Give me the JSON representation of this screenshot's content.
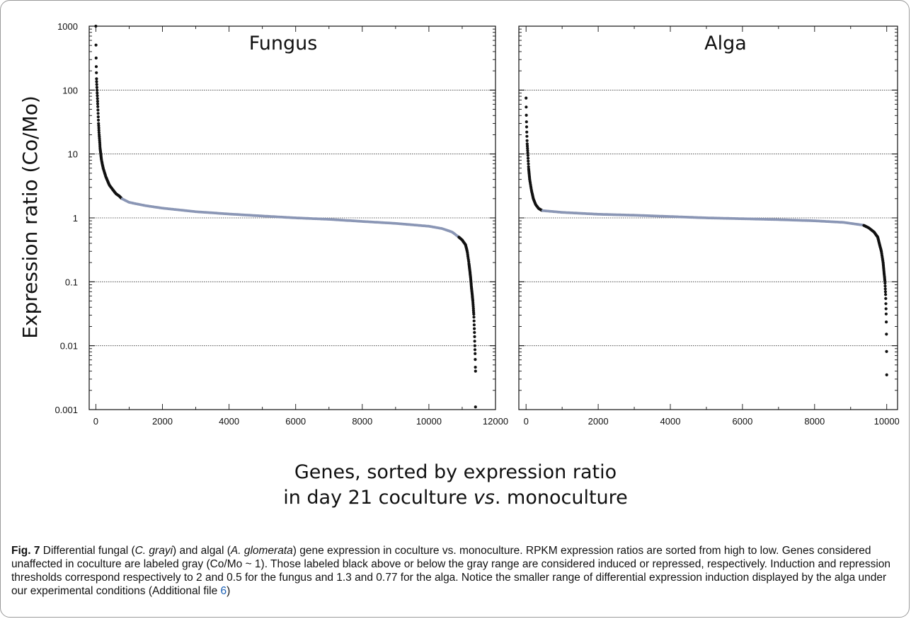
{
  "chart_data": [
    {
      "type": "scatter",
      "title": "Fungus",
      "ylabel": "Expression ratio (Co/Mo)",
      "yscale": "log",
      "ylim": [
        0.001,
        1000
      ],
      "xlim": [
        -200,
        12000
      ],
      "xticks": [
        "0",
        "2000",
        "4000",
        "6000",
        "8000",
        "10000",
        "12000"
      ],
      "yticks": [
        "0.001",
        "0.01",
        "0.1",
        "1",
        "10",
        "100",
        "1000"
      ],
      "gridlines": [
        0.01,
        0.1,
        1,
        10,
        100
      ],
      "n_genes": 11400,
      "thresholds": {
        "induced": 2,
        "repressed": 0.5
      },
      "colors": {
        "affected": "#111111",
        "unaffected": "#8a96b5"
      },
      "curve": [
        [
          0,
          1000
        ],
        [
          2,
          700
        ],
        [
          5,
          430
        ],
        [
          10,
          260
        ],
        [
          20,
          150
        ],
        [
          40,
          90
        ],
        [
          60,
          55
        ],
        [
          80,
          30
        ],
        [
          100,
          20
        ],
        [
          130,
          12
        ],
        [
          170,
          8
        ],
        [
          220,
          6
        ],
        [
          300,
          4.4
        ],
        [
          400,
          3.3
        ],
        [
          500,
          2.8
        ],
        [
          600,
          2.4
        ],
        [
          700,
          2.2
        ],
        [
          780,
          2.0
        ],
        [
          1000,
          1.75
        ],
        [
          1500,
          1.55
        ],
        [
          2000,
          1.42
        ],
        [
          3000,
          1.25
        ],
        [
          4000,
          1.15
        ],
        [
          5000,
          1.07
        ],
        [
          6000,
          1.0
        ],
        [
          7000,
          0.95
        ],
        [
          8000,
          0.88
        ],
        [
          9000,
          0.82
        ],
        [
          10000,
          0.74
        ],
        [
          10400,
          0.68
        ],
        [
          10700,
          0.6
        ],
        [
          10900,
          0.5
        ],
        [
          11000,
          0.45
        ],
        [
          11100,
          0.38
        ],
        [
          11150,
          0.3
        ],
        [
          11200,
          0.2
        ],
        [
          11250,
          0.12
        ],
        [
          11280,
          0.08
        ],
        [
          11320,
          0.05
        ],
        [
          11350,
          0.03
        ],
        [
          11370,
          0.015
        ],
        [
          11380,
          0.01
        ],
        [
          11390,
          0.007
        ],
        [
          11398,
          0.004
        ]
      ],
      "outliers": [
        [
          11400,
          0.0011
        ]
      ]
    },
    {
      "type": "scatter",
      "title": "Alga",
      "yscale": "log",
      "ylim": [
        0.001,
        1000
      ],
      "xlim": [
        -200,
        10300
      ],
      "xticks": [
        "0",
        "2000",
        "4000",
        "6000",
        "8000",
        "10000"
      ],
      "gridlines": [
        0.01,
        0.1,
        1,
        10,
        100
      ],
      "n_genes": 10000,
      "thresholds": {
        "induced": 1.3,
        "repressed": 0.77
      },
      "colors": {
        "affected": "#111111",
        "unaffected": "#8a96b5"
      },
      "curve": [
        [
          0,
          75
        ],
        [
          5,
          50
        ],
        [
          10,
          35
        ],
        [
          20,
          22
        ],
        [
          30,
          15
        ],
        [
          50,
          10
        ],
        [
          70,
          6
        ],
        [
          100,
          4
        ],
        [
          150,
          2.7
        ],
        [
          200,
          2.0
        ],
        [
          270,
          1.6
        ],
        [
          350,
          1.4
        ],
        [
          450,
          1.3
        ],
        [
          1000,
          1.22
        ],
        [
          2000,
          1.14
        ],
        [
          3000,
          1.1
        ],
        [
          4000,
          1.05
        ],
        [
          5000,
          1.0
        ],
        [
          6000,
          0.97
        ],
        [
          7000,
          0.94
        ],
        [
          8000,
          0.9
        ],
        [
          8800,
          0.85
        ],
        [
          9200,
          0.79
        ],
        [
          9350,
          0.77
        ],
        [
          9500,
          0.7
        ],
        [
          9650,
          0.6
        ],
        [
          9750,
          0.5
        ],
        [
          9850,
          0.3
        ],
        [
          9900,
          0.2
        ],
        [
          9950,
          0.1
        ],
        [
          9970,
          0.06
        ],
        [
          9985,
          0.03
        ],
        [
          9990,
          0.02
        ],
        [
          9995,
          0.01
        ],
        [
          10000,
          0.0035
        ]
      ],
      "outliers": []
    }
  ],
  "xlabel_line1": "Genes, sorted by expression ratio",
  "xlabel_line2_pre": "in day 21 coculture ",
  "xlabel_line2_em": "vs",
  "xlabel_line2_post": ". monoculture",
  "caption": {
    "figno": "Fig. 7",
    "p1": " Differential fungal (",
    "sp1": "C. grayi",
    "p2": ") and algal (",
    "sp2": "A. glomerata",
    "p3": ") gene expression in coculture vs. monoculture. RPKM expression ratios are sorted from high to low. Genes considered unaffected in coculture are labeled gray (Co/Mo ~ 1). Those labeled black above or below the gray range are considered induced or repressed, respectively. Induction and repression thresholds correspond respectively to 2 and 0.5 for the fungus and 1.3 and 0.77 for the alga. Notice the smaller range of differential expression induction displayed by the alga under our experimental conditions (Additional file ",
    "link": "6",
    "p4": ")"
  }
}
